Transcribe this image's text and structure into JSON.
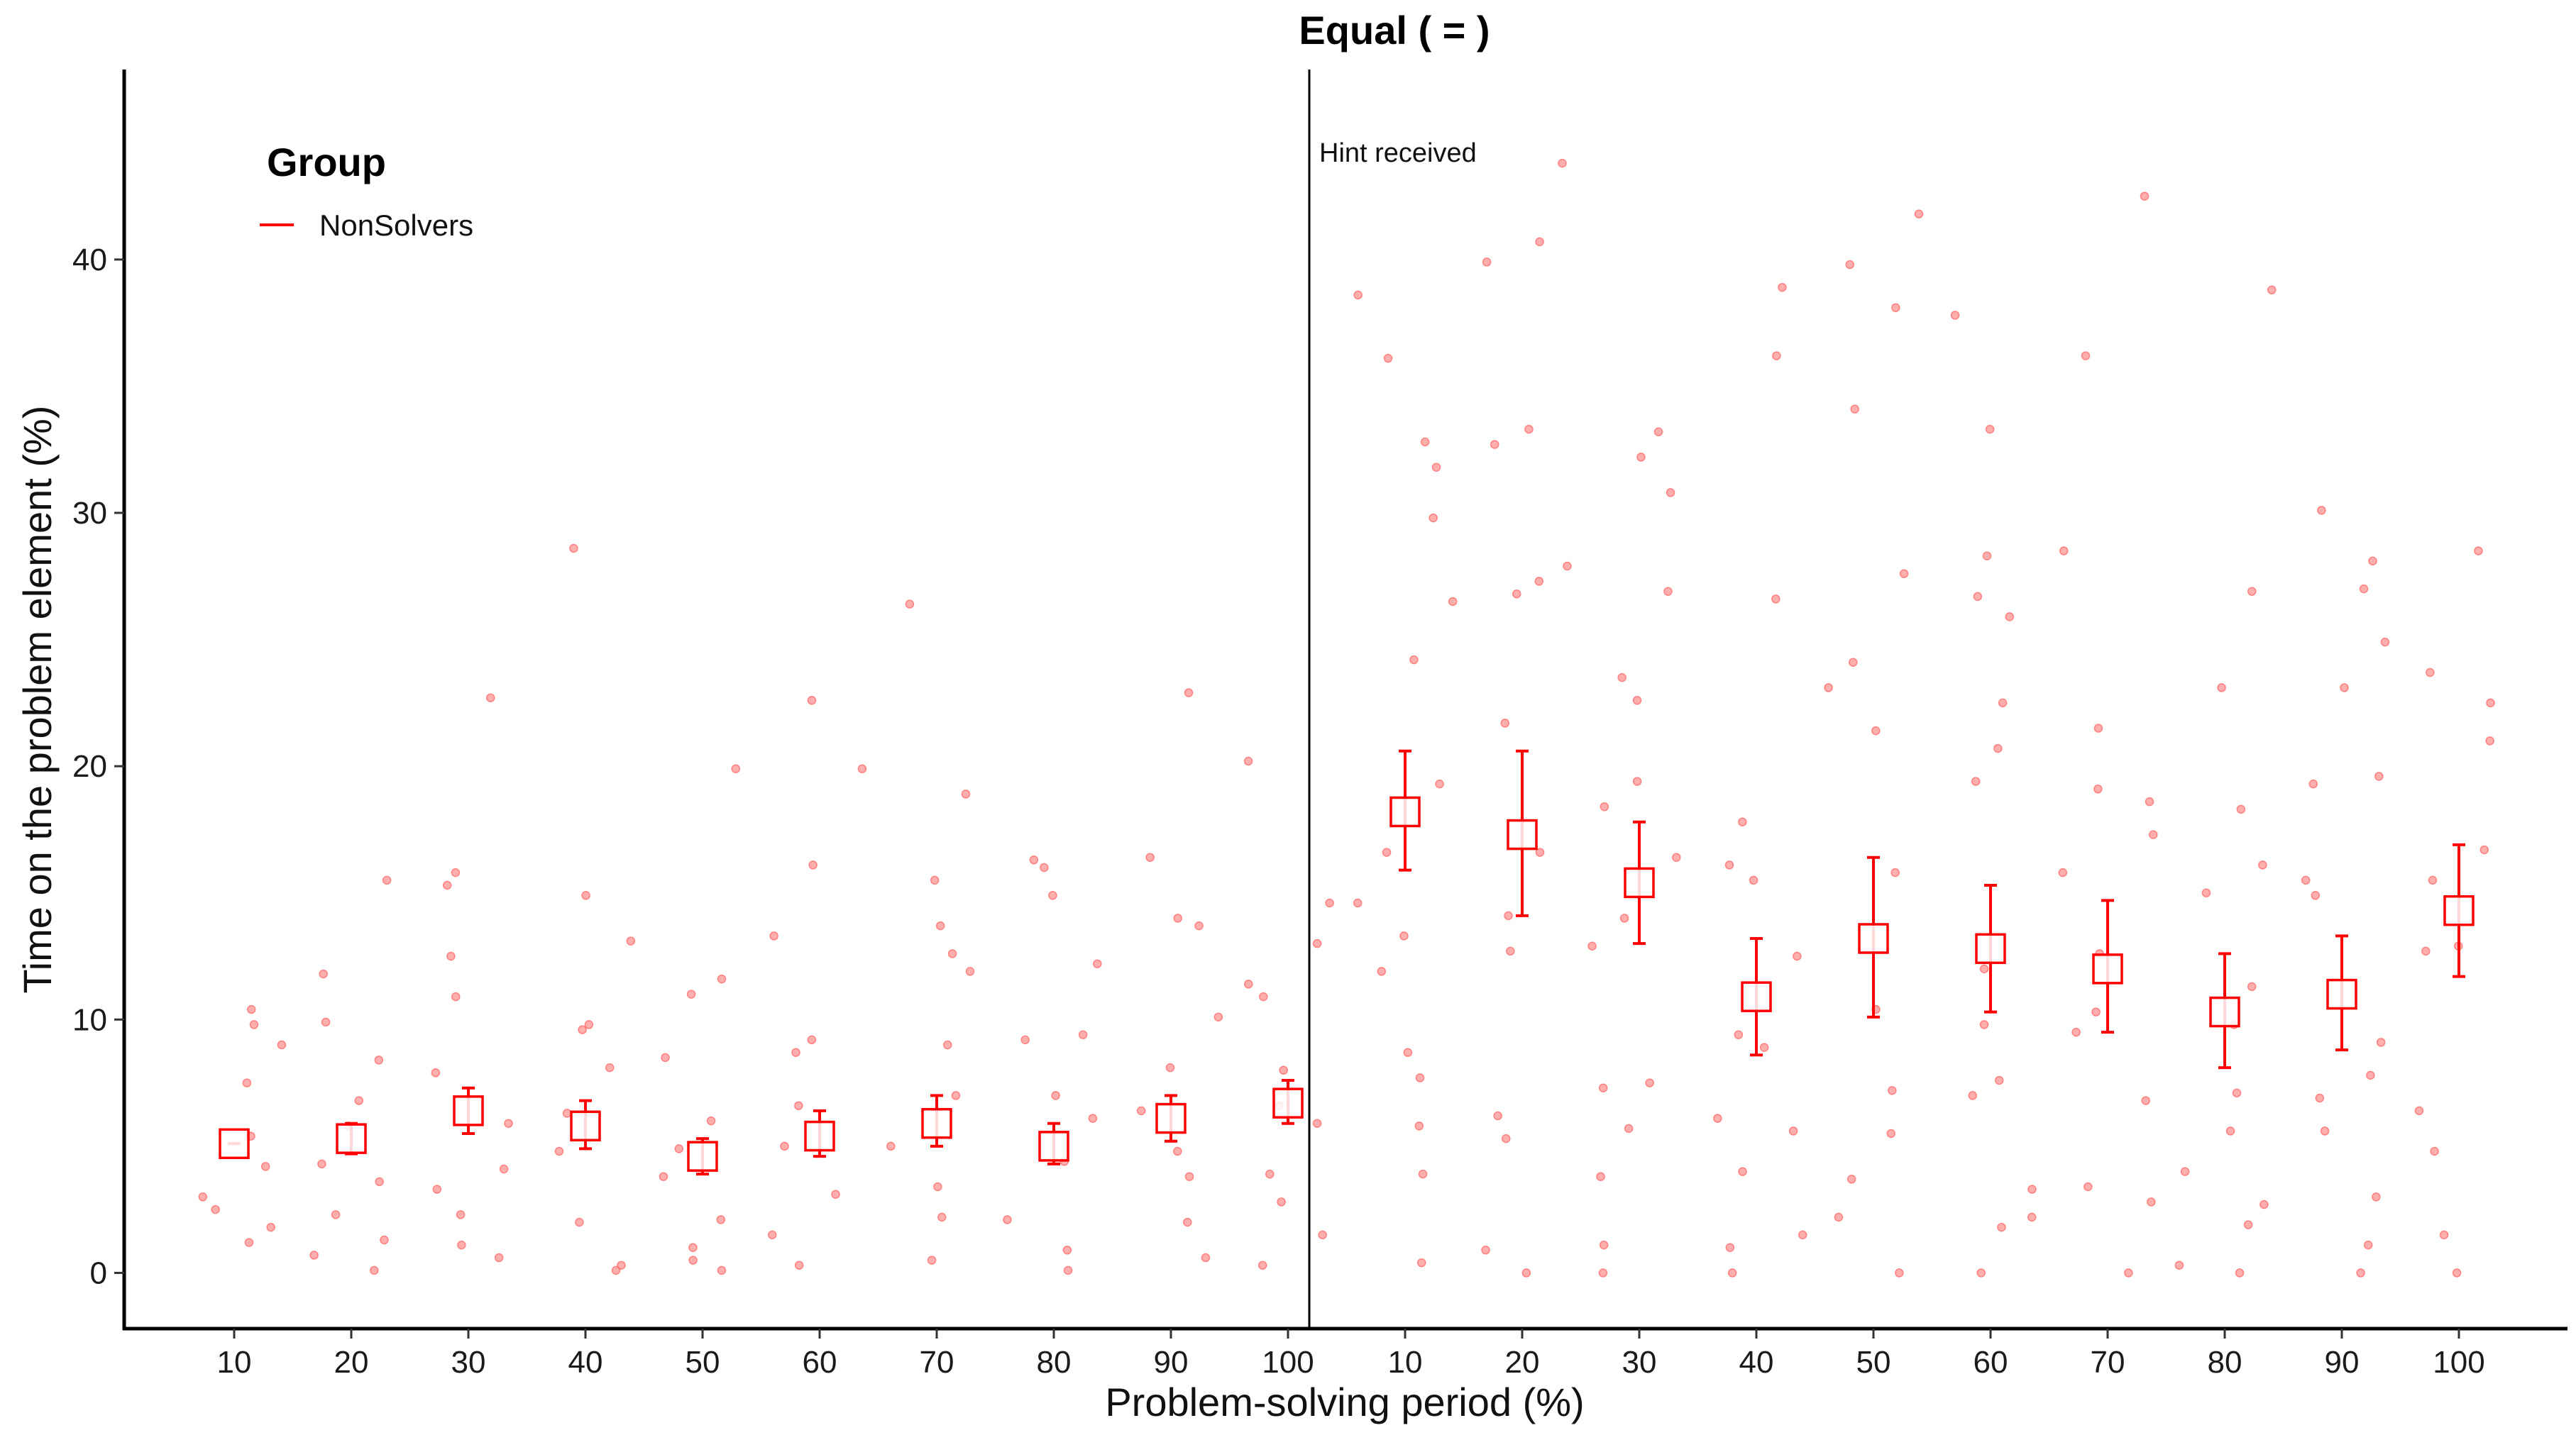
{
  "chart_data": {
    "type": "scatter",
    "title": "Equal ( = )",
    "xlabel": "Problem-solving period (%)",
    "ylabel": "Time on the problem element (%)",
    "ylim": [
      -2.2,
      47.5
    ],
    "y_ticks": [
      0,
      10,
      20,
      30,
      40
    ],
    "categories": [
      "10",
      "20",
      "30",
      "40",
      "50",
      "60",
      "70",
      "80",
      "90",
      "100",
      "10",
      "20",
      "30",
      "40",
      "50",
      "60",
      "70",
      "80",
      "90",
      "100"
    ],
    "annotation": "Hint received",
    "legend": {
      "title": "Group",
      "entries": [
        {
          "label": "NonSolvers",
          "color": "#ff0000"
        }
      ],
      "placement": "top-left"
    },
    "colors": {
      "series": "#ff0000",
      "points": "#ff6b6b",
      "axis": "#000000"
    },
    "series": [
      {
        "name": "NonSolvers",
        "means": [
          5.1,
          5.3,
          6.4,
          5.8,
          4.6,
          5.4,
          5.9,
          5.0,
          6.1,
          6.7,
          18.2,
          17.3,
          15.4,
          10.9,
          13.2,
          12.8,
          12.0,
          10.3,
          11.0,
          14.3
        ],
        "lower": [
          5.1,
          4.7,
          5.5,
          4.9,
          3.9,
          4.6,
          5.0,
          4.3,
          5.2,
          5.9,
          15.9,
          14.1,
          13.0,
          8.6,
          10.1,
          10.3,
          9.5,
          8.1,
          8.8,
          11.7
        ],
        "upper": [
          5.1,
          5.9,
          7.3,
          6.8,
          5.3,
          6.4,
          7.0,
          5.9,
          7.0,
          7.6,
          20.6,
          20.6,
          17.8,
          13.2,
          16.4,
          15.3,
          14.7,
          12.6,
          13.3,
          16.9
        ]
      }
    ],
    "points": [
      [
        1,
        1.2
      ],
      [
        1,
        2.5
      ],
      [
        1,
        7.5
      ],
      [
        1,
        9.0
      ],
      [
        1,
        10.4
      ],
      [
        1,
        5.4
      ],
      [
        1,
        3.0
      ],
      [
        1,
        1.8
      ],
      [
        1,
        9.8
      ],
      [
        1,
        4.2
      ],
      [
        2,
        0.1
      ],
      [
        2,
        2.3
      ],
      [
        2,
        3.6
      ],
      [
        2,
        4.3
      ],
      [
        2,
        6.8
      ],
      [
        2,
        9.9
      ],
      [
        2,
        11.8
      ],
      [
        2,
        8.4
      ],
      [
        2,
        15.5
      ],
      [
        2,
        1.3
      ],
      [
        2,
        0.7
      ],
      [
        2,
        5.8
      ],
      [
        3,
        22.7
      ],
      [
        3,
        15.8
      ],
      [
        3,
        15.3
      ],
      [
        3,
        10.9
      ],
      [
        3,
        5.9
      ],
      [
        3,
        4.1
      ],
      [
        3,
        2.3
      ],
      [
        3,
        1.1
      ],
      [
        3,
        0.6
      ],
      [
        3,
        3.3
      ],
      [
        3,
        7.9
      ],
      [
        3,
        12.5
      ],
      [
        4,
        28.6
      ],
      [
        4,
        14.9
      ],
      [
        4,
        13.1
      ],
      [
        4,
        9.6
      ],
      [
        4,
        8.1
      ],
      [
        4,
        4.8
      ],
      [
        4,
        2.0
      ],
      [
        4,
        0.3
      ],
      [
        4,
        0.1
      ],
      [
        4,
        6.3
      ],
      [
        4,
        9.8
      ],
      [
        5,
        19.9
      ],
      [
        5,
        11.6
      ],
      [
        5,
        8.5
      ],
      [
        5,
        6.0
      ],
      [
        5,
        3.8
      ],
      [
        5,
        2.1
      ],
      [
        5,
        1.0
      ],
      [
        5,
        0.1
      ],
      [
        5,
        4.9
      ],
      [
        5,
        11.0
      ],
      [
        5,
        0.5
      ],
      [
        6,
        22.6
      ],
      [
        6,
        19.9
      ],
      [
        6,
        16.1
      ],
      [
        6,
        13.3
      ],
      [
        6,
        8.7
      ],
      [
        6,
        5.0
      ],
      [
        6,
        3.1
      ],
      [
        6,
        1.5
      ],
      [
        6,
        0.3
      ],
      [
        6,
        6.6
      ],
      [
        6,
        9.2
      ],
      [
        7,
        26.4
      ],
      [
        7,
        18.9
      ],
      [
        7,
        15.5
      ],
      [
        7,
        13.7
      ],
      [
        7,
        11.9
      ],
      [
        7,
        9.0
      ],
      [
        7,
        7.0
      ],
      [
        7,
        5.0
      ],
      [
        7,
        2.2
      ],
      [
        7,
        0.5
      ],
      [
        7,
        3.4
      ],
      [
        7,
        12.6
      ],
      [
        8,
        16.3
      ],
      [
        8,
        14.9
      ],
      [
        8,
        12.2
      ],
      [
        8,
        9.2
      ],
      [
        8,
        7.0
      ],
      [
        8,
        6.1
      ],
      [
        8,
        4.4
      ],
      [
        8,
        2.1
      ],
      [
        8,
        0.9
      ],
      [
        8,
        0.1
      ],
      [
        8,
        16.0
      ],
      [
        8,
        9.4
      ],
      [
        9,
        22.9
      ],
      [
        9,
        16.4
      ],
      [
        9,
        13.7
      ],
      [
        9,
        10.1
      ],
      [
        9,
        8.1
      ],
      [
        9,
        6.4
      ],
      [
        9,
        4.8
      ],
      [
        9,
        2.0
      ],
      [
        9,
        0.6
      ],
      [
        9,
        14.0
      ],
      [
        9,
        3.8
      ],
      [
        10,
        20.2
      ],
      [
        10,
        14.6
      ],
      [
        10,
        11.4
      ],
      [
        10,
        10.9
      ],
      [
        10,
        8.0
      ],
      [
        10,
        5.9
      ],
      [
        10,
        3.9
      ],
      [
        10,
        1.5
      ],
      [
        10,
        0.3
      ],
      [
        10,
        13.0
      ],
      [
        10,
        6.6
      ],
      [
        10,
        2.8
      ],
      [
        11,
        38.6
      ],
      [
        11,
        36.1
      ],
      [
        11,
        32.8
      ],
      [
        11,
        31.8
      ],
      [
        11,
        29.8
      ],
      [
        11,
        26.5
      ],
      [
        11,
        24.2
      ],
      [
        11,
        19.3
      ],
      [
        11,
        16.6
      ],
      [
        11,
        14.6
      ],
      [
        11,
        11.9
      ],
      [
        11,
        8.7
      ],
      [
        11,
        5.8
      ],
      [
        11,
        3.9
      ],
      [
        11,
        0.4
      ],
      [
        11,
        13.3
      ],
      [
        11,
        7.7
      ],
      [
        12,
        43.8
      ],
      [
        12,
        40.7
      ],
      [
        12,
        39.9
      ],
      [
        12,
        33.3
      ],
      [
        12,
        32.7
      ],
      [
        12,
        27.3
      ],
      [
        12,
        26.8
      ],
      [
        12,
        21.7
      ],
      [
        12,
        16.6
      ],
      [
        12,
        14.1
      ],
      [
        12,
        12.7
      ],
      [
        12,
        6.2
      ],
      [
        12,
        5.3
      ],
      [
        12,
        0.9
      ],
      [
        12,
        0.0
      ],
      [
        12,
        27.9
      ],
      [
        13,
        33.2
      ],
      [
        13,
        32.2
      ],
      [
        13,
        30.8
      ],
      [
        13,
        26.9
      ],
      [
        13,
        23.5
      ],
      [
        13,
        22.6
      ],
      [
        13,
        19.4
      ],
      [
        13,
        18.4
      ],
      [
        13,
        16.4
      ],
      [
        13,
        14.0
      ],
      [
        13,
        12.9
      ],
      [
        13,
        7.5
      ],
      [
        13,
        5.7
      ],
      [
        13,
        3.8
      ],
      [
        13,
        1.1
      ],
      [
        13,
        0.0
      ],
      [
        13,
        7.3
      ],
      [
        14,
        38.9
      ],
      [
        14,
        36.2
      ],
      [
        14,
        26.6
      ],
      [
        14,
        17.8
      ],
      [
        14,
        16.1
      ],
      [
        14,
        15.5
      ],
      [
        14,
        12.5
      ],
      [
        14,
        9.4
      ],
      [
        14,
        6.1
      ],
      [
        14,
        5.6
      ],
      [
        14,
        4.0
      ],
      [
        14,
        1.5
      ],
      [
        14,
        1.0
      ],
      [
        14,
        0.0
      ],
      [
        14,
        8.9
      ],
      [
        15,
        41.8
      ],
      [
        15,
        39.8
      ],
      [
        15,
        38.1
      ],
      [
        15,
        34.1
      ],
      [
        15,
        27.6
      ],
      [
        15,
        24.1
      ],
      [
        15,
        21.4
      ],
      [
        15,
        15.8
      ],
      [
        15,
        10.4
      ],
      [
        15,
        7.2
      ],
      [
        15,
        5.5
      ],
      [
        15,
        3.7
      ],
      [
        15,
        2.2
      ],
      [
        15,
        0.0
      ],
      [
        15,
        23.1
      ],
      [
        16,
        37.8
      ],
      [
        16,
        33.3
      ],
      [
        16,
        28.3
      ],
      [
        16,
        26.7
      ],
      [
        16,
        25.9
      ],
      [
        16,
        22.5
      ],
      [
        16,
        20.7
      ],
      [
        16,
        19.4
      ],
      [
        16,
        12.0
      ],
      [
        16,
        9.8
      ],
      [
        16,
        7.6
      ],
      [
        16,
        7.0
      ],
      [
        16,
        3.3
      ],
      [
        16,
        2.2
      ],
      [
        16,
        1.8
      ],
      [
        16,
        0.0
      ],
      [
        17,
        42.5
      ],
      [
        17,
        36.2
      ],
      [
        17,
        28.5
      ],
      [
        17,
        21.5
      ],
      [
        17,
        19.1
      ],
      [
        17,
        18.6
      ],
      [
        17,
        17.3
      ],
      [
        17,
        15.8
      ],
      [
        17,
        12.6
      ],
      [
        17,
        10.3
      ],
      [
        17,
        9.5
      ],
      [
        17,
        6.8
      ],
      [
        17,
        3.4
      ],
      [
        17,
        2.8
      ],
      [
        17,
        0.0
      ],
      [
        18,
        38.8
      ],
      [
        18,
        26.9
      ],
      [
        18,
        23.1
      ],
      [
        18,
        18.3
      ],
      [
        18,
        16.1
      ],
      [
        18,
        15.0
      ],
      [
        18,
        11.3
      ],
      [
        18,
        9.8
      ],
      [
        18,
        7.1
      ],
      [
        18,
        5.6
      ],
      [
        18,
        4.0
      ],
      [
        18,
        2.7
      ],
      [
        18,
        1.9
      ],
      [
        18,
        0.3
      ],
      [
        18,
        0.0
      ],
      [
        19,
        30.1
      ],
      [
        19,
        28.1
      ],
      [
        19,
        27.0
      ],
      [
        19,
        24.9
      ],
      [
        19,
        23.1
      ],
      [
        19,
        19.6
      ],
      [
        19,
        19.3
      ],
      [
        19,
        15.5
      ],
      [
        19,
        14.9
      ],
      [
        19,
        9.1
      ],
      [
        19,
        7.8
      ],
      [
        19,
        6.9
      ],
      [
        19,
        5.6
      ],
      [
        19,
        3.0
      ],
      [
        19,
        1.1
      ],
      [
        19,
        0.0
      ],
      [
        20,
        28.5
      ],
      [
        20,
        23.7
      ],
      [
        20,
        22.5
      ],
      [
        20,
        21.0
      ],
      [
        20,
        16.7
      ],
      [
        20,
        15.5
      ],
      [
        20,
        12.7
      ],
      [
        20,
        6.4
      ],
      [
        20,
        4.8
      ],
      [
        20,
        1.5
      ],
      [
        20,
        0.0
      ],
      [
        20,
        12.9
      ]
    ]
  }
}
